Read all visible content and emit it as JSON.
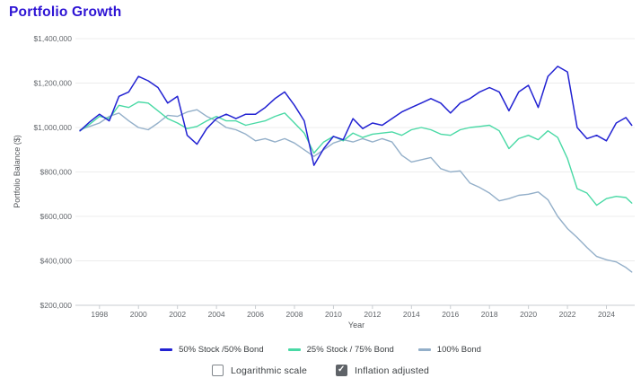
{
  "page": {
    "title": "Portfolio Growth",
    "title_color": "#2d13d4"
  },
  "chart_data": {
    "type": "line",
    "title": "Portfolio Growth",
    "xlabel": "Year",
    "ylabel": "Portfolio Balance ($)",
    "xlim": [
      1996.95,
      2025.45
    ],
    "ylim": [
      200000,
      1400000
    ],
    "grid": true,
    "legend_position": "bottom",
    "grid_color": "#ececec",
    "axis_color": "#c9cdd1",
    "yticks": [
      {
        "value": 200000,
        "label": "$200,000"
      },
      {
        "value": 400000,
        "label": "$400,000"
      },
      {
        "value": 600000,
        "label": "$600,000"
      },
      {
        "value": 800000,
        "label": "$800,000"
      },
      {
        "value": 1000000,
        "label": "$1,000,000"
      },
      {
        "value": 1200000,
        "label": "$1,200,000"
      },
      {
        "value": 1400000,
        "label": "$1,400,000"
      }
    ],
    "xticks": [
      {
        "value": 1998,
        "label": "1998"
      },
      {
        "value": 2000,
        "label": "2000"
      },
      {
        "value": 2002,
        "label": "2002"
      },
      {
        "value": 2004,
        "label": "2004"
      },
      {
        "value": 2006,
        "label": "2006"
      },
      {
        "value": 2008,
        "label": "2008"
      },
      {
        "value": 2010,
        "label": "2010"
      },
      {
        "value": 2012,
        "label": "2012"
      },
      {
        "value": 2014,
        "label": "2014"
      },
      {
        "value": 2016,
        "label": "2016"
      },
      {
        "value": 2018,
        "label": "2018"
      },
      {
        "value": 2020,
        "label": "2020"
      },
      {
        "value": 2022,
        "label": "2022"
      },
      {
        "value": 2024,
        "label": "2024"
      }
    ],
    "x": [
      1997,
      1997.5,
      1998,
      1998.5,
      1999,
      1999.5,
      2000,
      2000.5,
      2001,
      2001.5,
      2002,
      2002.5,
      2003,
      2003.5,
      2004,
      2004.5,
      2005,
      2005.5,
      2006,
      2006.5,
      2007,
      2007.5,
      2008,
      2008.5,
      2009,
      2009.5,
      2010,
      2010.5,
      2011,
      2011.5,
      2012,
      2012.5,
      2013,
      2013.5,
      2014,
      2014.5,
      2015,
      2015.5,
      2016,
      2016.5,
      2017,
      2017.5,
      2018,
      2018.5,
      2019,
      2019.5,
      2020,
      2020.5,
      2021,
      2021.5,
      2022,
      2022.5,
      2023,
      2023.5,
      2024,
      2024.5,
      2025,
      2025.3
    ],
    "series": [
      {
        "name": "50% Stock /50% Bond",
        "color": "#2222d2",
        "width": 1.5,
        "values": [
          985000,
          1025000,
          1060000,
          1030000,
          1140000,
          1160000,
          1230000,
          1210000,
          1180000,
          1110000,
          1140000,
          965000,
          925000,
          995000,
          1040000,
          1060000,
          1040000,
          1060000,
          1060000,
          1090000,
          1130000,
          1160000,
          1100000,
          1030000,
          830000,
          905000,
          960000,
          945000,
          1040000,
          995000,
          1020000,
          1010000,
          1040000,
          1070000,
          1090000,
          1110000,
          1130000,
          1110000,
          1065000,
          1110000,
          1130000,
          1160000,
          1180000,
          1160000,
          1075000,
          1160000,
          1190000,
          1090000,
          1230000,
          1275000,
          1250000,
          1000000,
          950000,
          965000,
          940000,
          1020000,
          1045000,
          1010000
        ]
      },
      {
        "name": "25% Stock / 75% Bond",
        "color": "#49d9a5",
        "width": 1.4,
        "values": [
          985000,
          1015000,
          1050000,
          1040000,
          1100000,
          1090000,
          1115000,
          1110000,
          1075000,
          1040000,
          1020000,
          995000,
          1005000,
          1030000,
          1050000,
          1030000,
          1030000,
          1010000,
          1020000,
          1030000,
          1050000,
          1065000,
          1020000,
          975000,
          885000,
          935000,
          960000,
          940000,
          975000,
          955000,
          970000,
          975000,
          980000,
          965000,
          990000,
          1000000,
          990000,
          970000,
          965000,
          990000,
          1000000,
          1005000,
          1010000,
          985000,
          905000,
          950000,
          965000,
          945000,
          985000,
          955000,
          860000,
          725000,
          705000,
          650000,
          680000,
          690000,
          685000,
          660000
        ]
      },
      {
        "name": "100% Bond",
        "color": "#93afc9",
        "width": 1.4,
        "values": [
          990000,
          1005000,
          1020000,
          1050000,
          1065000,
          1030000,
          1000000,
          990000,
          1020000,
          1055000,
          1050000,
          1070000,
          1080000,
          1050000,
          1030000,
          1000000,
          990000,
          970000,
          940000,
          950000,
          935000,
          950000,
          930000,
          900000,
          870000,
          900000,
          930000,
          945000,
          935000,
          950000,
          935000,
          950000,
          935000,
          875000,
          845000,
          855000,
          865000,
          815000,
          800000,
          805000,
          750000,
          730000,
          705000,
          670000,
          680000,
          695000,
          700000,
          710000,
          675000,
          600000,
          545000,
          505000,
          460000,
          420000,
          405000,
          395000,
          370000,
          350000
        ]
      }
    ]
  },
  "controls": {
    "checkboxes": [
      {
        "label": "Logarithmic scale",
        "checked": false
      },
      {
        "label": "Inflation adjusted",
        "checked": true
      }
    ]
  }
}
